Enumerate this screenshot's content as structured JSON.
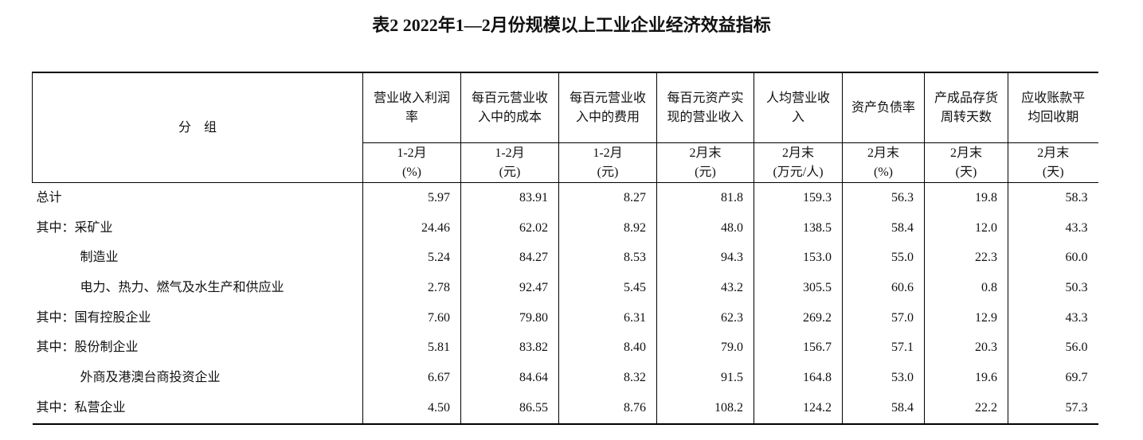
{
  "title": "表2  2022年1—2月份规模以上工业企业经济效益指标",
  "table": {
    "group_header": "分　组",
    "columns": [
      {
        "name": "营业收入利润率",
        "period": "1-2月",
        "unit": "(%)"
      },
      {
        "name": "每百元营业收入中的成本",
        "period": "1-2月",
        "unit": "(元)"
      },
      {
        "name": "每百元营业收入中的费用",
        "period": "1-2月",
        "unit": "(元)"
      },
      {
        "name": "每百元资产实现的营业收入",
        "period": "2月末",
        "unit": "(元)"
      },
      {
        "name": "人均营业收入",
        "period": "2月末",
        "unit": "(万元/人)"
      },
      {
        "name": "资产负债率",
        "period": "2月末",
        "unit": "(%)"
      },
      {
        "name": "产成品存货周转天数",
        "period": "2月末",
        "unit": "(天)"
      },
      {
        "name": "应收账款平均回收期",
        "period": "2月末",
        "unit": "(天)"
      }
    ],
    "rows": [
      {
        "label": "总计",
        "values": [
          "5.97",
          "83.91",
          "8.27",
          "81.8",
          "159.3",
          "56.3",
          "19.8",
          "58.3"
        ]
      },
      {
        "label": "其中：采矿业",
        "values": [
          "24.46",
          "62.02",
          "8.92",
          "48.0",
          "138.5",
          "58.4",
          "12.0",
          "43.3"
        ]
      },
      {
        "label": "制造业",
        "values": [
          "5.24",
          "84.27",
          "8.53",
          "94.3",
          "153.0",
          "55.0",
          "22.3",
          "60.0"
        ]
      },
      {
        "label": "电力、热力、燃气及水生产和供应业",
        "values": [
          "2.78",
          "92.47",
          "5.45",
          "43.2",
          "305.5",
          "60.6",
          "0.8",
          "50.3"
        ]
      },
      {
        "label": "其中：国有控股企业",
        "values": [
          "7.60",
          "79.80",
          "6.31",
          "62.3",
          "269.2",
          "57.0",
          "12.9",
          "43.3"
        ]
      },
      {
        "label": "其中：股份制企业",
        "values": [
          "5.81",
          "83.82",
          "8.40",
          "79.0",
          "156.7",
          "57.1",
          "20.3",
          "56.0"
        ]
      },
      {
        "label": "外商及港澳台商投资企业",
        "values": [
          "6.67",
          "84.64",
          "8.32",
          "91.5",
          "164.8",
          "53.0",
          "19.6",
          "69.7"
        ]
      },
      {
        "label": "其中：私营企业",
        "values": [
          "4.50",
          "86.55",
          "8.76",
          "108.2",
          "124.2",
          "58.4",
          "22.2",
          "57.3"
        ]
      }
    ]
  }
}
